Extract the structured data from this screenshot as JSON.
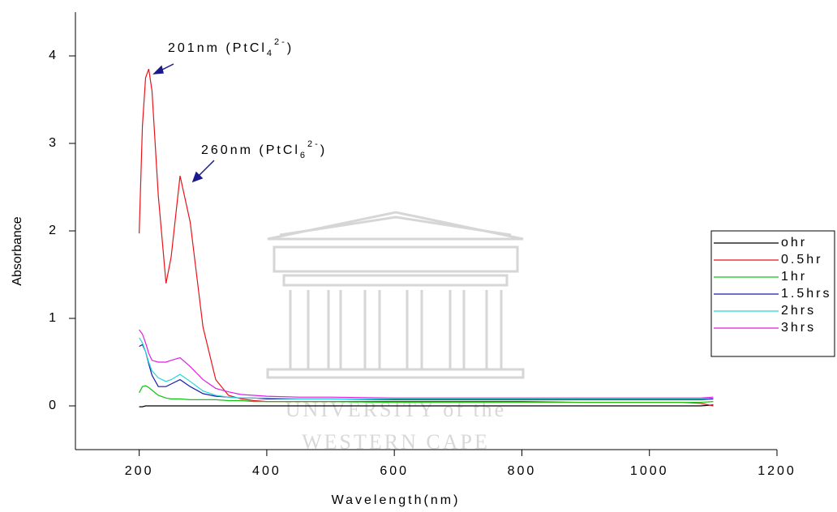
{
  "chart_data": {
    "type": "line",
    "x_label": "Wavelength(nm)",
    "y_label": "Absorbance",
    "xlim": [
      100,
      1200
    ],
    "ylim": [
      -0.5,
      4.5
    ],
    "xticks": [
      200,
      400,
      600,
      800,
      1000,
      1200
    ],
    "yticks": [
      0,
      1,
      2,
      3,
      4
    ],
    "legend": "right",
    "annotations": [
      {
        "text": "201nm (PtCl",
        "sub": "4",
        "sup": "2-",
        "end": ")"
      },
      {
        "text": "260nm  (PtCl",
        "sub": "6",
        "sup": "2-",
        "end": ")"
      }
    ],
    "watermark": [
      "UNIVERSITY of the",
      "WESTERN CAPE"
    ],
    "x": [
      200,
      205,
      210,
      215,
      220,
      230,
      242,
      250,
      264,
      280,
      300,
      320,
      340,
      360,
      380,
      400,
      450,
      500,
      600,
      700,
      800,
      900,
      1000,
      1050,
      1080,
      1100
    ],
    "series": [
      {
        "name": "ohr",
        "color": "#000000",
        "values": [
          -0.01,
          -0.01,
          0,
          0,
          0,
          0,
          0,
          0,
          0,
          0,
          0,
          0,
          0,
          0,
          0,
          0,
          0,
          0,
          0,
          0,
          0,
          0,
          0,
          0,
          0,
          0.01
        ]
      },
      {
        "name": "0.5hr",
        "color": "#e8141a",
        "values": [
          1.97,
          3.2,
          3.75,
          3.85,
          3.6,
          2.4,
          1.4,
          1.7,
          2.63,
          2.1,
          0.9,
          0.3,
          0.12,
          0.08,
          0.06,
          0.05,
          0.05,
          0.05,
          0.05,
          0.05,
          0.05,
          0.04,
          0.04,
          0.04,
          0.03,
          0
        ]
      },
      {
        "name": "1hr",
        "color": "#11c411",
        "values": [
          0.15,
          0.22,
          0.23,
          0.21,
          0.18,
          0.12,
          0.09,
          0.08,
          0.08,
          0.07,
          0.07,
          0.07,
          0.06,
          0.06,
          0.05,
          0.05,
          0.05,
          0.05,
          0.04,
          0.04,
          0.04,
          0.04,
          0.04,
          0.04,
          0.04,
          0.05
        ]
      },
      {
        "name": "1.5hrs",
        "color": "#1a1aa8",
        "values": [
          0.68,
          0.7,
          0.62,
          0.48,
          0.35,
          0.22,
          0.22,
          0.25,
          0.3,
          0.22,
          0.14,
          0.11,
          0.1,
          0.09,
          0.09,
          0.08,
          0.08,
          0.08,
          0.07,
          0.07,
          0.07,
          0.07,
          0.07,
          0.07,
          0.07,
          0.08
        ]
      },
      {
        "name": "2hrs",
        "color": "#22d8d8",
        "values": [
          0.78,
          0.72,
          0.62,
          0.5,
          0.4,
          0.32,
          0.28,
          0.3,
          0.36,
          0.28,
          0.17,
          0.12,
          0.1,
          0.09,
          0.09,
          0.09,
          0.08,
          0.08,
          0.08,
          0.08,
          0.08,
          0.08,
          0.08,
          0.08,
          0.08,
          0.09
        ]
      },
      {
        "name": "3hrs",
        "color": "#e01ee0",
        "values": [
          0.87,
          0.82,
          0.72,
          0.6,
          0.52,
          0.5,
          0.5,
          0.52,
          0.55,
          0.45,
          0.3,
          0.2,
          0.16,
          0.13,
          0.12,
          0.11,
          0.1,
          0.1,
          0.09,
          0.09,
          0.09,
          0.09,
          0.09,
          0.09,
          0.09,
          0.1
        ]
      }
    ]
  }
}
